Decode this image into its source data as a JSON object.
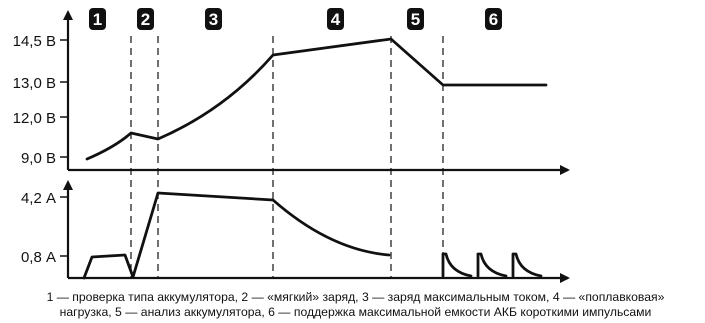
{
  "stages": [
    {
      "number": "1"
    },
    {
      "number": "2"
    },
    {
      "number": "3"
    },
    {
      "number": "4"
    },
    {
      "number": "5"
    },
    {
      "number": "6"
    }
  ],
  "voltage_axis": {
    "ticks": [
      "14,5 В",
      "13,0 В",
      "12,0 В",
      "9,0 В"
    ]
  },
  "current_axis": {
    "ticks": [
      "4,2 А",
      "0,8 А"
    ]
  },
  "caption": {
    "line1": "1 — проверка типа аккумулятора, 2 — «мягкий» заряд, 3 — заряд максимальным током, 4 — «поплавковая»",
    "line2": "нагрузка, 5 — анализ аккумулятора, 6 — поддержка максимальной емкости АКБ короткими импульсами"
  },
  "colors": {
    "ink": "#111111",
    "badge_fill": "#111111",
    "badge_text": "#ffffff"
  }
}
